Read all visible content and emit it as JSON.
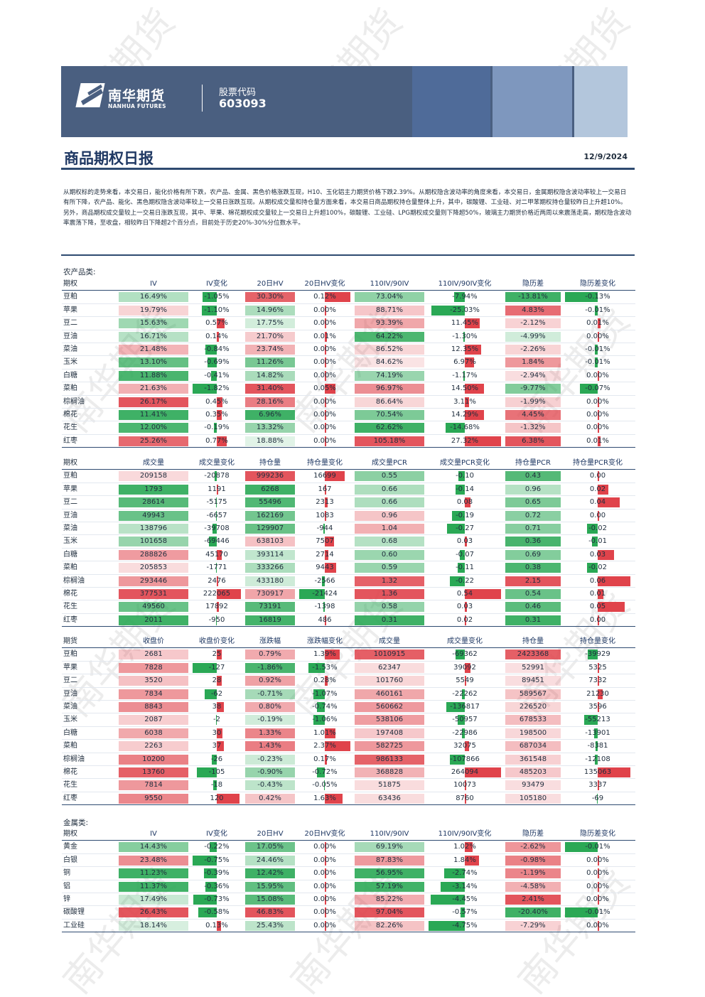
{
  "header": {
    "brand_cn": "南华期货",
    "brand_en": "NANHUA FUTURES",
    "stock_label": "股票代码",
    "stock_code": "603093"
  },
  "report": {
    "title": "商品期权日报",
    "date": "12/9/2024"
  },
  "summary": "从期权标的走势来看，本交易日，能化价格有所下跌，农产品、金属、黑色价格涨跌互现，H10、玉化铝主力期货价格下跌2.39%。从期权隐含波动率的角度来看，本交易日，金属期权隐含波动率较上一交易日有所下降，农产品、能化、黑色期权隐含波动率较上一交易日涨跌互现。从期权成交量和持仓量方面来看，本交易日商品期权持仓量整体上升，其中，碳酸锂、工业硅、对二甲苯期权持仓量较昨日上升超10%。另外，商品期权成交量较上一交易日涨跌互现，其中、苹果、棉花期权成交量较上一交易日上升超100%，碳酸锂、工业硅、LPG期权成交量则下降超50%，玻璃主力期货价格近两周以来震荡走高，期权隐含波动率震荡下降，至收盘，相较昨日下降超2个百分点，目前处于历史20%-30%分位数水平。",
  "agri_label": "农产品类:",
  "metal_label": "金属类:",
  "tables": [
    {
      "headers": [
        "期权",
        "IV",
        "IV变化",
        "20日HV",
        "20日HV变化",
        "110IV/90IV",
        "110IV/90IV变化",
        "隐历差",
        "隐历差变化"
      ],
      "rows": [
        [
          "豆粕",
          "16.49%",
          "-1.05%",
          "30.30%",
          "0.12%",
          "73.04%",
          "-7.94%",
          "-13.81%",
          "-0.13%"
        ],
        [
          "苹果",
          "19.79%",
          "-1.10%",
          "14.96%",
          "0.00%",
          "88.71%",
          "-25.03%",
          "4.83%",
          "-0.01%"
        ],
        [
          "豆二",
          "15.63%",
          "0.57%",
          "17.75%",
          "0.00%",
          "93.39%",
          "11.45%",
          "-2.12%",
          "0.01%"
        ],
        [
          "豆油",
          "16.71%",
          "0.14%",
          "21.70%",
          "0.01%",
          "64.22%",
          "-1.30%",
          "-4.99%",
          "0.00%"
        ],
        [
          "菜油",
          "21.48%",
          "-0.84%",
          "23.74%",
          "0.00%",
          "86.52%",
          "12.35%",
          "-2.26%",
          "-0.01%"
        ],
        [
          "玉米",
          "13.10%",
          "-0.69%",
          "11.26%",
          "0.00%",
          "84.62%",
          "6.97%",
          "1.84%",
          "-0.01%"
        ],
        [
          "白糖",
          "11.88%",
          "-0.41%",
          "14.82%",
          "0.00%",
          "74.19%",
          "-1.17%",
          "-2.94%",
          "0.00%"
        ],
        [
          "菜粕",
          "21.63%",
          "-1.82%",
          "31.40%",
          "0.05%",
          "96.97%",
          "14.50%",
          "-9.77%",
          "-0.07%"
        ],
        [
          "棕榈油",
          "26.17%",
          "0.45%",
          "28.16%",
          "0.00%",
          "86.64%",
          "3.11%",
          "-1.99%",
          "0.00%"
        ],
        [
          "棉花",
          "11.41%",
          "0.35%",
          "6.96%",
          "0.00%",
          "70.54%",
          "14.29%",
          "4.45%",
          "0.00%"
        ],
        [
          "花生",
          "12.00%",
          "-0.19%",
          "13.32%",
          "0.00%",
          "62.62%",
          "-14.68%",
          "-1.32%",
          "0.00%"
        ],
        [
          "红枣",
          "25.26%",
          "0.77%",
          "18.88%",
          "0.00%",
          "105.18%",
          "27.32%",
          "6.38%",
          "0.01%"
        ]
      ]
    },
    {
      "headers": [
        "期权",
        "成交量",
        "成交量变化",
        "持仓量",
        "持仓量变化",
        "成交量PCR",
        "成交量PCR变化",
        "持仓量PCR",
        "持仓量PCR变化"
      ],
      "rows": [
        [
          "豆粕",
          "209158",
          "-20878",
          "999236",
          "16699",
          "0.55",
          "-0.10",
          "0.43",
          "0.00"
        ],
        [
          "苹果",
          "1793",
          "1191",
          "6268",
          "167",
          "0.66",
          "-0.14",
          "0.96",
          "0.02"
        ],
        [
          "豆二",
          "28614",
          "-5175",
          "55496",
          "2313",
          "0.66",
          "0.08",
          "0.65",
          "0.04"
        ],
        [
          "豆油",
          "49943",
          "-6657",
          "162169",
          "1083",
          "0.96",
          "-0.19",
          "0.72",
          "0.00"
        ],
        [
          "菜油",
          "138796",
          "-39708",
          "129907",
          "-944",
          "1.04",
          "-0.27",
          "0.71",
          "-0.02"
        ],
        [
          "玉米",
          "101658",
          "-69446",
          "638103",
          "7507",
          "0.68",
          "0.03",
          "0.36",
          "-0.01"
        ],
        [
          "白糖",
          "288826",
          "45170",
          "393114",
          "2714",
          "0.60",
          "-0.07",
          "0.69",
          "0.03"
        ],
        [
          "菜粕",
          "205853",
          "-1771",
          "333266",
          "9443",
          "0.59",
          "-0.11",
          "0.38",
          "-0.02"
        ],
        [
          "棕榈油",
          "293446",
          "2476",
          "433180",
          "-2566",
          "1.32",
          "-0.22",
          "2.15",
          "0.06"
        ],
        [
          "棉花",
          "377531",
          "222065",
          "730917",
          "-21424",
          "1.36",
          "0.54",
          "0.54",
          "0.01"
        ],
        [
          "花生",
          "49560",
          "17892",
          "73191",
          "-1398",
          "0.58",
          "0.03",
          "0.46",
          "0.05"
        ],
        [
          "红枣",
          "2011",
          "-950",
          "16819",
          "486",
          "0.31",
          "0.02",
          "0.31",
          "0.00"
        ]
      ]
    },
    {
      "headers": [
        "期货",
        "收盘价",
        "收盘价变化",
        "涨跌幅",
        "涨跌幅变化",
        "成交量",
        "成交量变化",
        "持仓量",
        "持仓量变化"
      ],
      "rows": [
        [
          "豆粕",
          "2681",
          "25",
          "0.79%",
          "1.39%",
          "1010915",
          "-69362",
          "2423368",
          "-39929"
        ],
        [
          "苹果",
          "7828",
          "-127",
          "-1.86%",
          "-1.53%",
          "62347",
          "39092",
          "52991",
          "5325"
        ],
        [
          "豆二",
          "3520",
          "28",
          "0.92%",
          "0.28%",
          "101760",
          "5549",
          "89451",
          "7332"
        ],
        [
          "豆油",
          "7834",
          "-62",
          "-0.71%",
          "-1.07%",
          "460161",
          "-22262",
          "589567",
          "21230"
        ],
        [
          "菜油",
          "8843",
          "38",
          "0.80%",
          "-0.74%",
          "560662",
          "-136817",
          "226520",
          "3596"
        ],
        [
          "玉米",
          "2087",
          "-2",
          "-0.19%",
          "-1.06%",
          "538106",
          "-50957",
          "678533",
          "-55213"
        ],
        [
          "白糖",
          "6038",
          "30",
          "1.33%",
          "1.01%",
          "197408",
          "-22986",
          "198500",
          "-13901"
        ],
        [
          "菜粕",
          "2263",
          "37",
          "1.43%",
          "2.37%",
          "582725",
          "32075",
          "687034",
          "-8381"
        ],
        [
          "棕榈油",
          "10200",
          "-26",
          "-0.23%",
          "0.17%",
          "986133",
          "-107866",
          "361548",
          "-12108"
        ],
        [
          "棉花",
          "13760",
          "-105",
          "-0.90%",
          "-0.72%",
          "368828",
          "264094",
          "485203",
          "135063"
        ],
        [
          "花生",
          "7814",
          "-18",
          "-0.43%",
          "-0.05%",
          "51875",
          "10073",
          "93479",
          "3337"
        ],
        [
          "红枣",
          "9550",
          "120",
          "0.42%",
          "1.63%",
          "63436",
          "8760",
          "105180",
          "-69"
        ]
      ]
    },
    {
      "headers": [
        "期权",
        "IV",
        "IV变化",
        "20日HV",
        "20日HV变化",
        "110IV/90IV",
        "110IV/90IV变化",
        "隐历差",
        "隐历差变化"
      ],
      "rows": [
        [
          "黄金",
          "14.43%",
          "-0.22%",
          "17.05%",
          "0.00%",
          "69.19%",
          "1.02%",
          "-2.62%",
          "-0.01%"
        ],
        [
          "白银",
          "23.48%",
          "-0.75%",
          "24.46%",
          "0.00%",
          "87.83%",
          "1.84%",
          "-0.98%",
          "0.00%"
        ],
        [
          "铜",
          "11.23%",
          "-0.39%",
          "12.42%",
          "0.00%",
          "56.95%",
          "-2.74%",
          "-1.19%",
          "0.00%"
        ],
        [
          "铝",
          "11.37%",
          "-0.36%",
          "15.95%",
          "0.00%",
          "57.19%",
          "-3.14%",
          "-4.58%",
          "0.00%"
        ],
        [
          "锌",
          "17.49%",
          "-0.73%",
          "15.08%",
          "0.00%",
          "85.22%",
          "-4.45%",
          "2.41%",
          "0.00%"
        ],
        [
          "碳酸锂",
          "26.43%",
          "-0.58%",
          "46.83%",
          "0.00%",
          "97.04%",
          "-0.57%",
          "-20.40%",
          "-0.01%"
        ],
        [
          "工业硅",
          "18.14%",
          "0.13%",
          "25.43%",
          "0.00%",
          "82.26%",
          "-4.75%",
          "-7.29%",
          "0.00%"
        ]
      ]
    }
  ],
  "watermark": "南华期货",
  "colors": {
    "banner": "#4a5f80",
    "red": "#e0434b",
    "green": "#2aa855",
    "title": "#1f3863"
  }
}
